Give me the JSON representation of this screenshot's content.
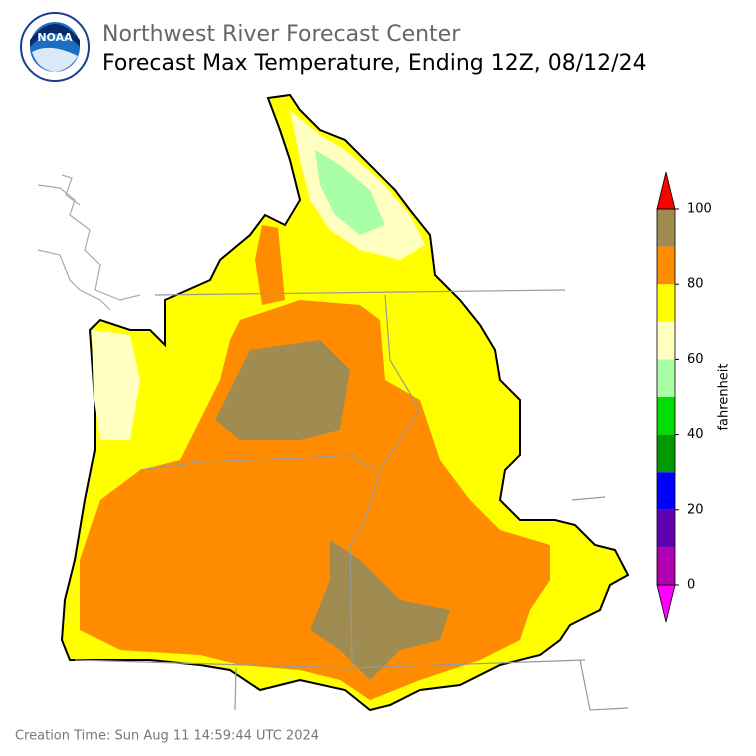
{
  "header": {
    "logo_text": "NOAA",
    "org": "Northwest River Forecast Center",
    "title": "Forecast Max Temperature, Ending 12Z, 08/12/24"
  },
  "colorbar": {
    "label": "fahrenheit",
    "range": [
      0,
      100
    ],
    "ticks": [
      0,
      20,
      40,
      60,
      80,
      100
    ],
    "colors": [
      "#b000b0",
      "#6000b0",
      "#0000ff",
      "#009900",
      "#00dd00",
      "#a8ffa8",
      "#ffffc0",
      "#ffff00",
      "#ff8c00",
      "#a08c50"
    ],
    "under_color": "#ff00ff",
    "over_color": "#ff0000"
  },
  "footer": {
    "creation_time": "Creation Time: Sun Aug 11 14:59:44 UTC 2024"
  }
}
